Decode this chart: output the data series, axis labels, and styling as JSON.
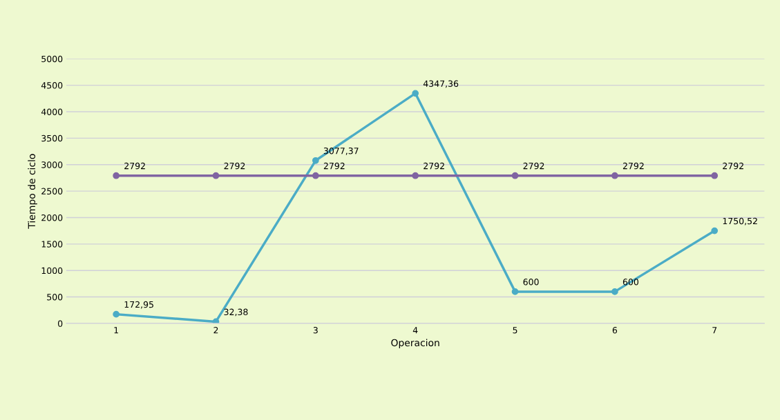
{
  "chart_data": {
    "type": "line",
    "xlabel": "Operacion",
    "ylabel": "Tiempo de ciclo",
    "categories": [
      "1",
      "2",
      "3",
      "4",
      "5",
      "6",
      "7"
    ],
    "series": [
      {
        "color": "#4bacc6",
        "values": [
          172.95,
          32.38,
          3077.37,
          4347.36,
          600,
          600,
          1750.52
        ],
        "value_labels": [
          "172,95",
          "32,38",
          "3077,37",
          "4347,36",
          "600",
          "600",
          "1750,52"
        ]
      },
      {
        "color": "#8064a2",
        "values": [
          2792,
          2792,
          2792,
          2792,
          2792,
          2792,
          2792
        ],
        "value_labels": [
          "2792",
          "2792",
          "2792",
          "2792",
          "2792",
          "2792",
          "2792"
        ]
      }
    ],
    "ylim": [
      0,
      5000
    ],
    "yticks": [
      0,
      500,
      1000,
      1500,
      2000,
      2500,
      3000,
      3500,
      4000,
      4500,
      5000
    ],
    "grid": "y",
    "marker": "circle",
    "line_style": "solid"
  }
}
